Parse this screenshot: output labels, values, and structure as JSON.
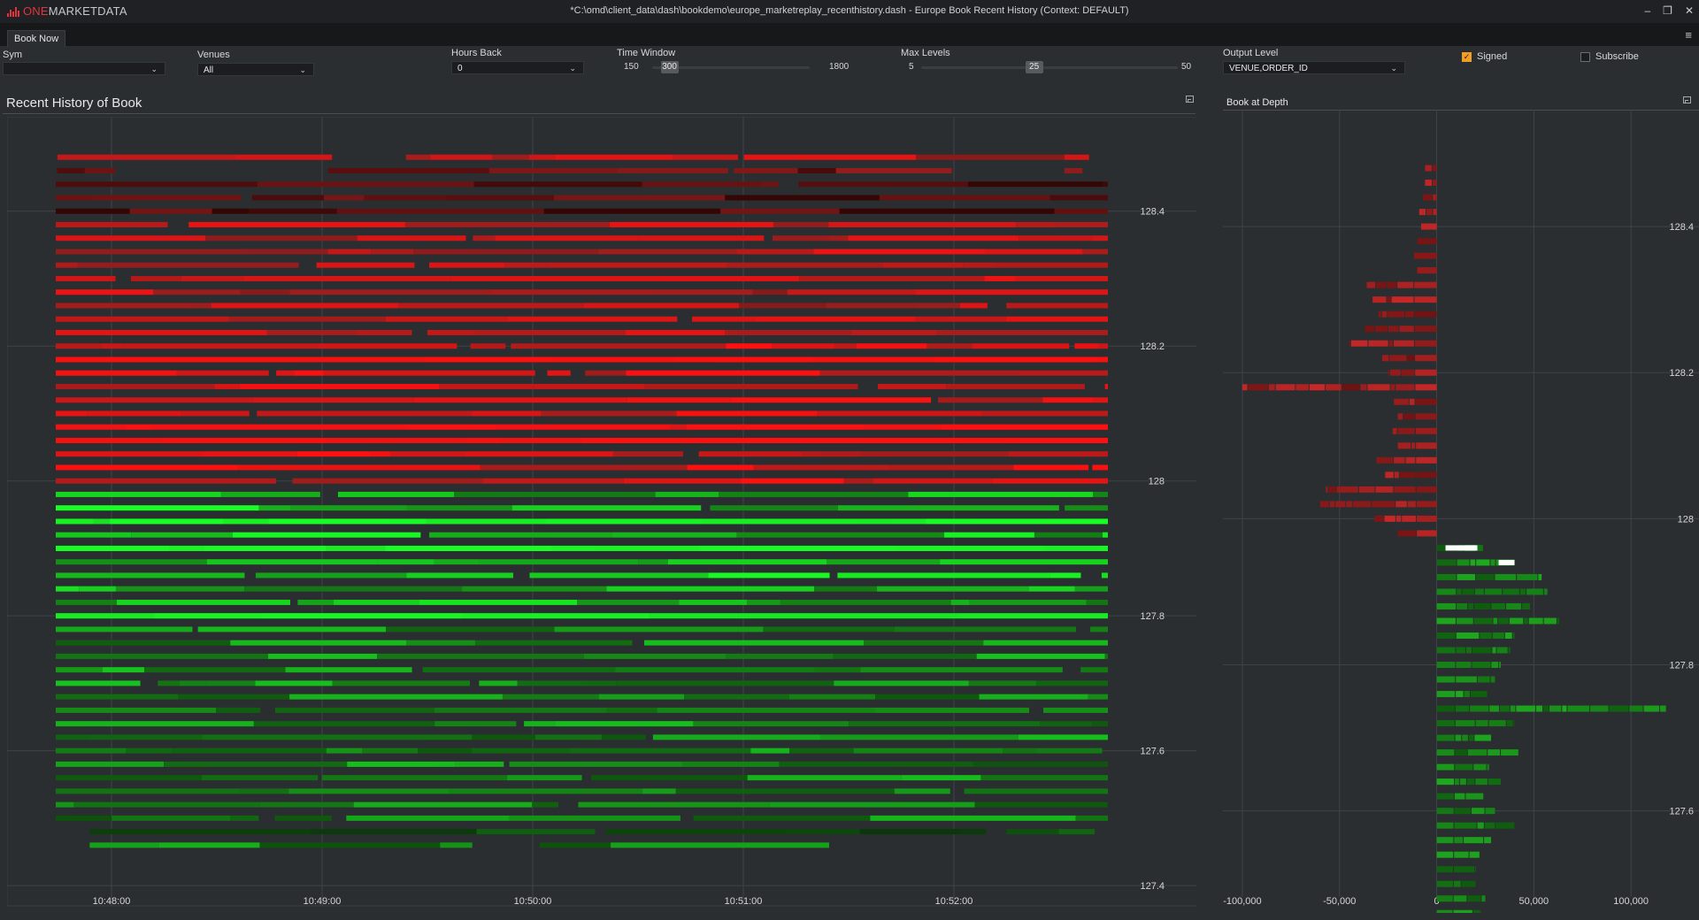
{
  "app": {
    "brand_one": "ONE",
    "brand_rest": "MARKETDATA",
    "window_title": "*C:\\omd\\client_data\\dash\\bookdemo\\europe_marketreplay_recenthistory.dash - Europe Book Recent History (Context: DEFAULT)",
    "minimize_icon": "minimize-icon",
    "maximize_icon": "maximize-icon",
    "close_icon": "close-icon"
  },
  "tabs": [
    {
      "label": "Book Now"
    }
  ],
  "controls": {
    "sym": {
      "label": "Sym",
      "value": ""
    },
    "venues": {
      "label": "Venues",
      "value": "All"
    },
    "hours_back": {
      "label": "Hours Back",
      "value": "0"
    },
    "time_window": {
      "label": "Time Window",
      "min": "150",
      "value": "300",
      "max": "1800",
      "fraction": 0.11
    },
    "max_levels": {
      "label": "Max Levels",
      "min": "5",
      "value": "25",
      "max": "50",
      "fraction": 0.44
    },
    "output_level": {
      "label": "Output Level",
      "value": "VENUE,ORDER_ID"
    },
    "signed": {
      "label": "Signed",
      "checked": true
    },
    "subscribe": {
      "label": "Subscribe",
      "checked": false
    }
  },
  "colors": {
    "bid_bright": "#18ff24",
    "ask_bright": "#ff1010",
    "background": "#2b2e31",
    "accent": "#f29d25"
  },
  "left_panel": {
    "title": "Recent History of Book",
    "chart_data": {
      "type": "heatmap",
      "x_ticks": [
        "10:48:00",
        "10:49:00",
        "10:50:00",
        "10:51:00",
        "10:52:00"
      ],
      "y_ticks": [
        "128.4",
        "128.2",
        "128",
        "127.8",
        "127.6",
        "127.4"
      ],
      "ylim": [
        127.37,
        128.54
      ],
      "grid": true,
      "asks": {
        "price_min": 128.0,
        "price_max": 128.48,
        "step": 0.02
      },
      "bids": {
        "price_min": 127.46,
        "price_max": 127.98,
        "step": 0.02
      }
    }
  },
  "right_panel": {
    "title": "Book at Depth",
    "chart_data": {
      "type": "bar",
      "orientation": "horizontal",
      "x_ticks": [
        "-100,000",
        "-50,000",
        "0",
        "50,000",
        "100,000"
      ],
      "y_ticks": [
        "128.4",
        "128.2",
        "128",
        "127.8",
        "127.6"
      ],
      "xlim": [
        -110000,
        135000
      ],
      "ylim": [
        127.47,
        128.56
      ],
      "grid": true,
      "asks": [
        {
          "price": 128.48,
          "size": -6000
        },
        {
          "price": 128.46,
          "size": -6000
        },
        {
          "price": 128.44,
          "size": -7000
        },
        {
          "price": 128.42,
          "size": -9000
        },
        {
          "price": 128.4,
          "size": -8000
        },
        {
          "price": 128.38,
          "size": -10000
        },
        {
          "price": 128.36,
          "size": -12000
        },
        {
          "price": 128.34,
          "size": -10000
        },
        {
          "price": 128.32,
          "size": -36000
        },
        {
          "price": 128.3,
          "size": -33000
        },
        {
          "price": 128.28,
          "size": -30000
        },
        {
          "price": 128.26,
          "size": -37000
        },
        {
          "price": 128.24,
          "size": -45000
        },
        {
          "price": 128.22,
          "size": -28000
        },
        {
          "price": 128.2,
          "size": -25000
        },
        {
          "price": 128.18,
          "size": -100000
        },
        {
          "price": 128.16,
          "size": -22000
        },
        {
          "price": 128.14,
          "size": -20000
        },
        {
          "price": 128.12,
          "size": -23000
        },
        {
          "price": 128.1,
          "size": -20000
        },
        {
          "price": 128.08,
          "size": -31000
        },
        {
          "price": 128.06,
          "size": -27000
        },
        {
          "price": 128.04,
          "size": -57000
        },
        {
          "price": 128.02,
          "size": -60000
        },
        {
          "price": 128.0,
          "size": -32000
        },
        {
          "price": 127.98,
          "size": -20000
        }
      ],
      "bids": [
        {
          "price": 127.96,
          "size": 24000
        },
        {
          "price": 127.94,
          "size": 40000
        },
        {
          "price": 127.92,
          "size": 54000
        },
        {
          "price": 127.9,
          "size": 57000
        },
        {
          "price": 127.88,
          "size": 48000
        },
        {
          "price": 127.86,
          "size": 63000
        },
        {
          "price": 127.84,
          "size": 40000
        },
        {
          "price": 127.82,
          "size": 38000
        },
        {
          "price": 127.8,
          "size": 33000
        },
        {
          "price": 127.78,
          "size": 30000
        },
        {
          "price": 127.76,
          "size": 26000
        },
        {
          "price": 127.74,
          "size": 118000
        },
        {
          "price": 127.72,
          "size": 40000
        },
        {
          "price": 127.7,
          "size": 28000
        },
        {
          "price": 127.68,
          "size": 42000
        },
        {
          "price": 127.66,
          "size": 27000
        },
        {
          "price": 127.64,
          "size": 33000
        },
        {
          "price": 127.62,
          "size": 24000
        },
        {
          "price": 127.6,
          "size": 30000
        },
        {
          "price": 127.58,
          "size": 40000
        },
        {
          "price": 127.56,
          "size": 28000
        },
        {
          "price": 127.54,
          "size": 22000
        },
        {
          "price": 127.52,
          "size": 20000
        },
        {
          "price": 127.5,
          "size": 20000
        },
        {
          "price": 127.48,
          "size": 25000
        },
        {
          "price": 127.46,
          "size": 23000
        }
      ]
    }
  }
}
